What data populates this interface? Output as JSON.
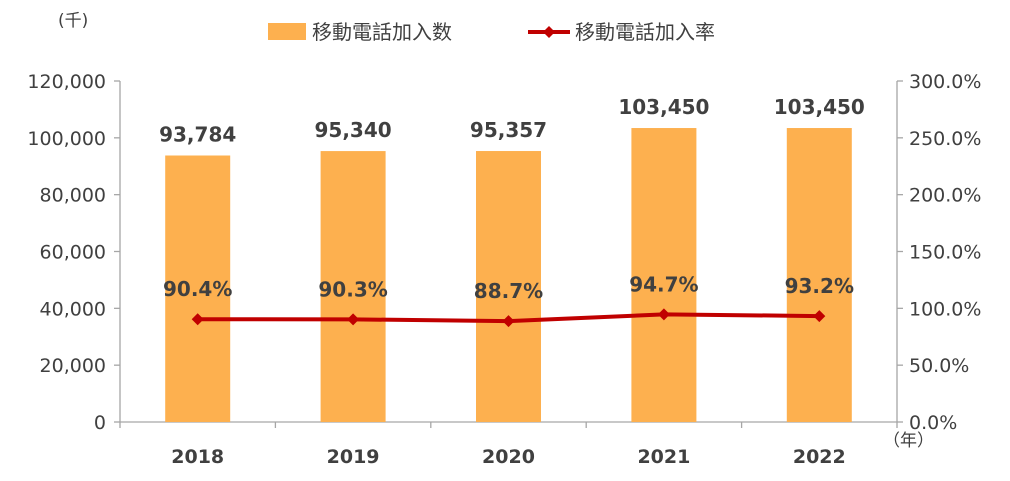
{
  "chart_data": {
    "type": "bar",
    "categories": [
      "2018",
      "2019",
      "2020",
      "2021",
      "2022"
    ],
    "series": [
      {
        "name": "移動電話加入数",
        "kind": "bar",
        "axis": "left",
        "values": [
          93784,
          95340,
          95357,
          103450,
          103450
        ],
        "labels": [
          "93,784",
          "95,340",
          "95,357",
          "103,450",
          "103,450"
        ]
      },
      {
        "name": "移動電話加入率",
        "kind": "line",
        "axis": "right",
        "values": [
          90.4,
          90.3,
          88.7,
          94.7,
          93.2
        ],
        "labels": [
          "90.4%",
          "90.3%",
          "88.7%",
          "94.7%",
          "93.2%"
        ]
      }
    ],
    "y_left": {
      "unit": "(千)",
      "range": [
        0,
        120000
      ],
      "ticks": [
        "0",
        "20,000",
        "40,000",
        "60,000",
        "80,000",
        "100,000",
        "120,000"
      ]
    },
    "y_right": {
      "range": [
        0,
        300
      ],
      "ticks": [
        "0.0%",
        "50.0%",
        "100.0%",
        "150.0%",
        "200.0%",
        "250.0%",
        "300.0%"
      ]
    },
    "x_unit": "（年）",
    "legend_position": "top",
    "grid": false,
    "colors": {
      "bar": "#FDB04F",
      "line": "#C00000",
      "axis": "#A6A6A6",
      "text": "#404040"
    }
  }
}
